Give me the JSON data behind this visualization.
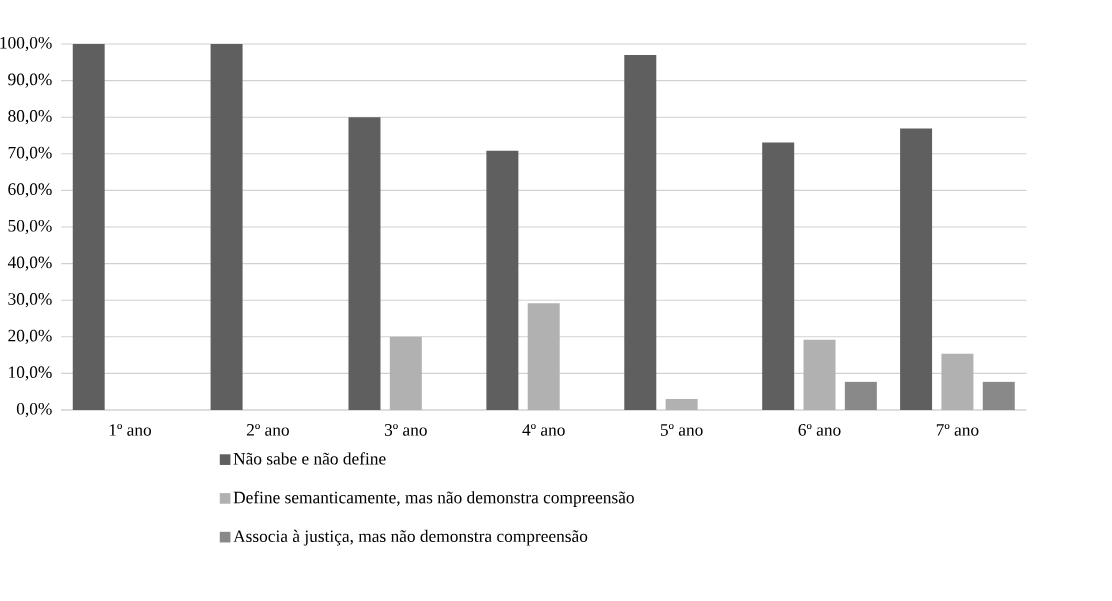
{
  "chart_data": {
    "type": "bar",
    "categories": [
      "1º ano",
      "2º ano",
      "3º ano",
      "4º ano",
      "5º ano",
      "6º ano",
      "7º ano"
    ],
    "series": [
      {
        "name": "Não sabe e não define",
        "color": "#5f5f5f",
        "values": [
          100,
          100,
          80,
          70.8,
          97,
          73.1,
          76.9
        ]
      },
      {
        "name": "Define semanticamente, mas não demonstra compreensão",
        "color": "#b1b1b1",
        "values": [
          0,
          0,
          20,
          29.2,
          3,
          19.2,
          15.4
        ]
      },
      {
        "name": "Associa à justiça, mas não demonstra compreensão",
        "color": "#898989",
        "values": [
          0,
          0,
          0,
          0,
          0,
          7.7,
          7.7
        ]
      }
    ],
    "ylim": [
      0,
      100
    ],
    "yticks": [
      {
        "value": 0,
        "label": "0,0%"
      },
      {
        "value": 10,
        "label": "10,0%"
      },
      {
        "value": 20,
        "label": "20,0%"
      },
      {
        "value": 30,
        "label": "30,0%"
      },
      {
        "value": 40,
        "label": "40,0%"
      },
      {
        "value": 50,
        "label": "50,0%"
      },
      {
        "value": 60,
        "label": "60,0%"
      },
      {
        "value": 70,
        "label": "70,0%"
      },
      {
        "value": 80,
        "label": "80,0%"
      },
      {
        "value": 90,
        "label": "90,0%"
      },
      {
        "value": 100,
        "label": "100,0%"
      }
    ],
    "grid": "y",
    "legend": "bottom"
  }
}
